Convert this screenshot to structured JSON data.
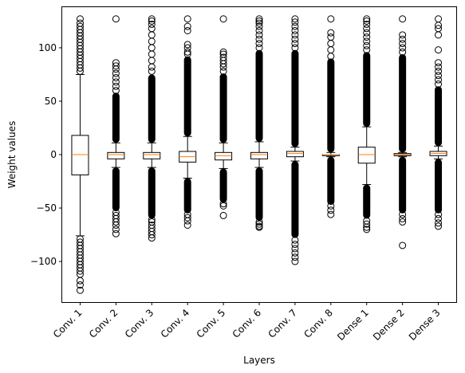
{
  "chart_data": {
    "type": "box",
    "title": "",
    "xlabel": "Layers",
    "ylabel": "Weight values",
    "ylim": [
      -138,
      138
    ],
    "yticks": [
      -100,
      -50,
      0,
      50,
      100
    ],
    "ytick_labels": [
      "−100",
      "−50",
      "0",
      "50",
      "100"
    ],
    "grid": false,
    "colors": {
      "box": "#000000",
      "median": "#ff7f0e",
      "flier": "#000000"
    },
    "categories": [
      "Conv. 1",
      "Conv. 2",
      "Conv. 3",
      "Conv. 4",
      "Conv. 5",
      "Conv. 6",
      "Conv. 7",
      "Conv. 8",
      "Dense 1",
      "Dense 2",
      "Dense 3"
    ],
    "boxes": [
      {
        "q1": -19,
        "median": 0,
        "q3": 18,
        "whisker_low": -76,
        "whisker_high": 75,
        "fliers_high": [
          78,
          81,
          84,
          87,
          90,
          93,
          96,
          99,
          102,
          105,
          108,
          111,
          114,
          117,
          120,
          123,
          127
        ],
        "fliers_low": [
          -79,
          -82,
          -85,
          -88,
          -91,
          -94,
          -97,
          -100,
          -103,
          -106,
          -109,
          -112,
          -118,
          -122,
          -127
        ],
        "dense_high": null,
        "dense_low": null
      },
      {
        "q1": -4,
        "median": 0,
        "q3": 2,
        "whisker_low": -12,
        "whisker_high": 11,
        "fliers_high": [
          60,
          64,
          68,
          72,
          76,
          80,
          83,
          86,
          127
        ],
        "fliers_low": [
          -54,
          -57,
          -60,
          -63,
          -66,
          -70,
          -74
        ],
        "dense_high": [
          11,
          58
        ],
        "dense_low": [
          -12,
          -53
        ]
      },
      {
        "q1": -4,
        "median": 0,
        "q3": 2,
        "whisker_low": -12,
        "whisker_high": 11,
        "fliers_high": [
          78,
          82,
          88,
          94,
          100,
          106,
          112,
          118,
          122,
          125,
          127
        ],
        "fliers_low": [
          -61,
          -63,
          -66,
          -69,
          -72,
          -75,
          -78
        ],
        "dense_high": [
          11,
          75
        ],
        "dense_low": [
          -12,
          -60
        ]
      },
      {
        "q1": -7,
        "median": -2,
        "q3": 3,
        "whisker_low": -22,
        "whisker_high": 17,
        "fliers_high": [
          94,
          96,
          100,
          103,
          116,
          120,
          127
        ],
        "fliers_low": [
          -56,
          -59,
          -62,
          -66
        ],
        "dense_high": [
          17,
          92
        ],
        "dense_low": [
          -22,
          -55
        ]
      },
      {
        "q1": -5,
        "median": -1,
        "q3": 2,
        "whisker_low": -13,
        "whisker_high": 11,
        "fliers_high": [
          78,
          82,
          85,
          88,
          91,
          94,
          96,
          127
        ],
        "fliers_low": [
          -46,
          -48,
          -57
        ],
        "dense_high": [
          11,
          76
        ],
        "dense_low": [
          -13,
          -45
        ]
      },
      {
        "q1": -4,
        "median": 0,
        "q3": 2,
        "whisker_low": -12,
        "whisker_high": 12,
        "fliers_high": [
          100,
          104,
          108,
          112,
          116,
          120,
          123,
          125,
          127
        ],
        "fliers_low": [
          -63,
          -65,
          -67,
          -68
        ],
        "dense_high": [
          12,
          98
        ],
        "dense_low": [
          -12,
          -62
        ]
      },
      {
        "q1": -2,
        "median": 1,
        "q3": 3,
        "whisker_low": -6,
        "whisker_high": 7,
        "fliers_high": [
          100,
          104,
          108,
          112,
          116,
          120,
          124,
          127
        ],
        "fliers_low": [
          -80,
          -84,
          -88,
          -92,
          -96,
          -100
        ],
        "dense_high": [
          7,
          98
        ],
        "dense_low": [
          -6,
          -78
        ]
      },
      {
        "q1": -1,
        "median": 0,
        "q3": 0,
        "whisker_low": -2,
        "whisker_high": 2,
        "fliers_high": [
          92,
          98,
          104,
          110,
          114,
          127
        ],
        "fliers_low": [
          -48,
          -52,
          -56
        ],
        "dense_high": [
          2,
          90
        ],
        "dense_low": [
          -2,
          -47
        ]
      },
      {
        "q1": -8,
        "median": 0,
        "q3": 7,
        "whisker_low": -28,
        "whisker_high": 26,
        "fliers_high": [
          98,
          102,
          106,
          110,
          114,
          118,
          122,
          125,
          127
        ],
        "fliers_low": [
          -62,
          -65,
          -68,
          -70
        ],
        "dense_high": [
          26,
          96
        ],
        "dense_low": [
          -28,
          -60
        ]
      },
      {
        "q1": -1,
        "median": 0,
        "q3": 1,
        "whisker_low": -2,
        "whisker_high": 2,
        "fliers_high": [
          96,
          100,
          104,
          108,
          112,
          127
        ],
        "fliers_low": [
          -56,
          -60,
          -63,
          -85
        ],
        "dense_high": [
          2,
          94
        ],
        "dense_low": [
          -2,
          -55
        ]
      },
      {
        "q1": -1,
        "median": 1,
        "q3": 3,
        "whisker_low": -4,
        "whisker_high": 8,
        "fliers_high": [
          66,
          70,
          74,
          78,
          82,
          86,
          98,
          112,
          118,
          121,
          127
        ],
        "fliers_low": [
          -56,
          -60,
          -64,
          -67
        ],
        "dense_high": [
          8,
          64
        ],
        "dense_low": [
          -4,
          -55
        ]
      }
    ]
  }
}
